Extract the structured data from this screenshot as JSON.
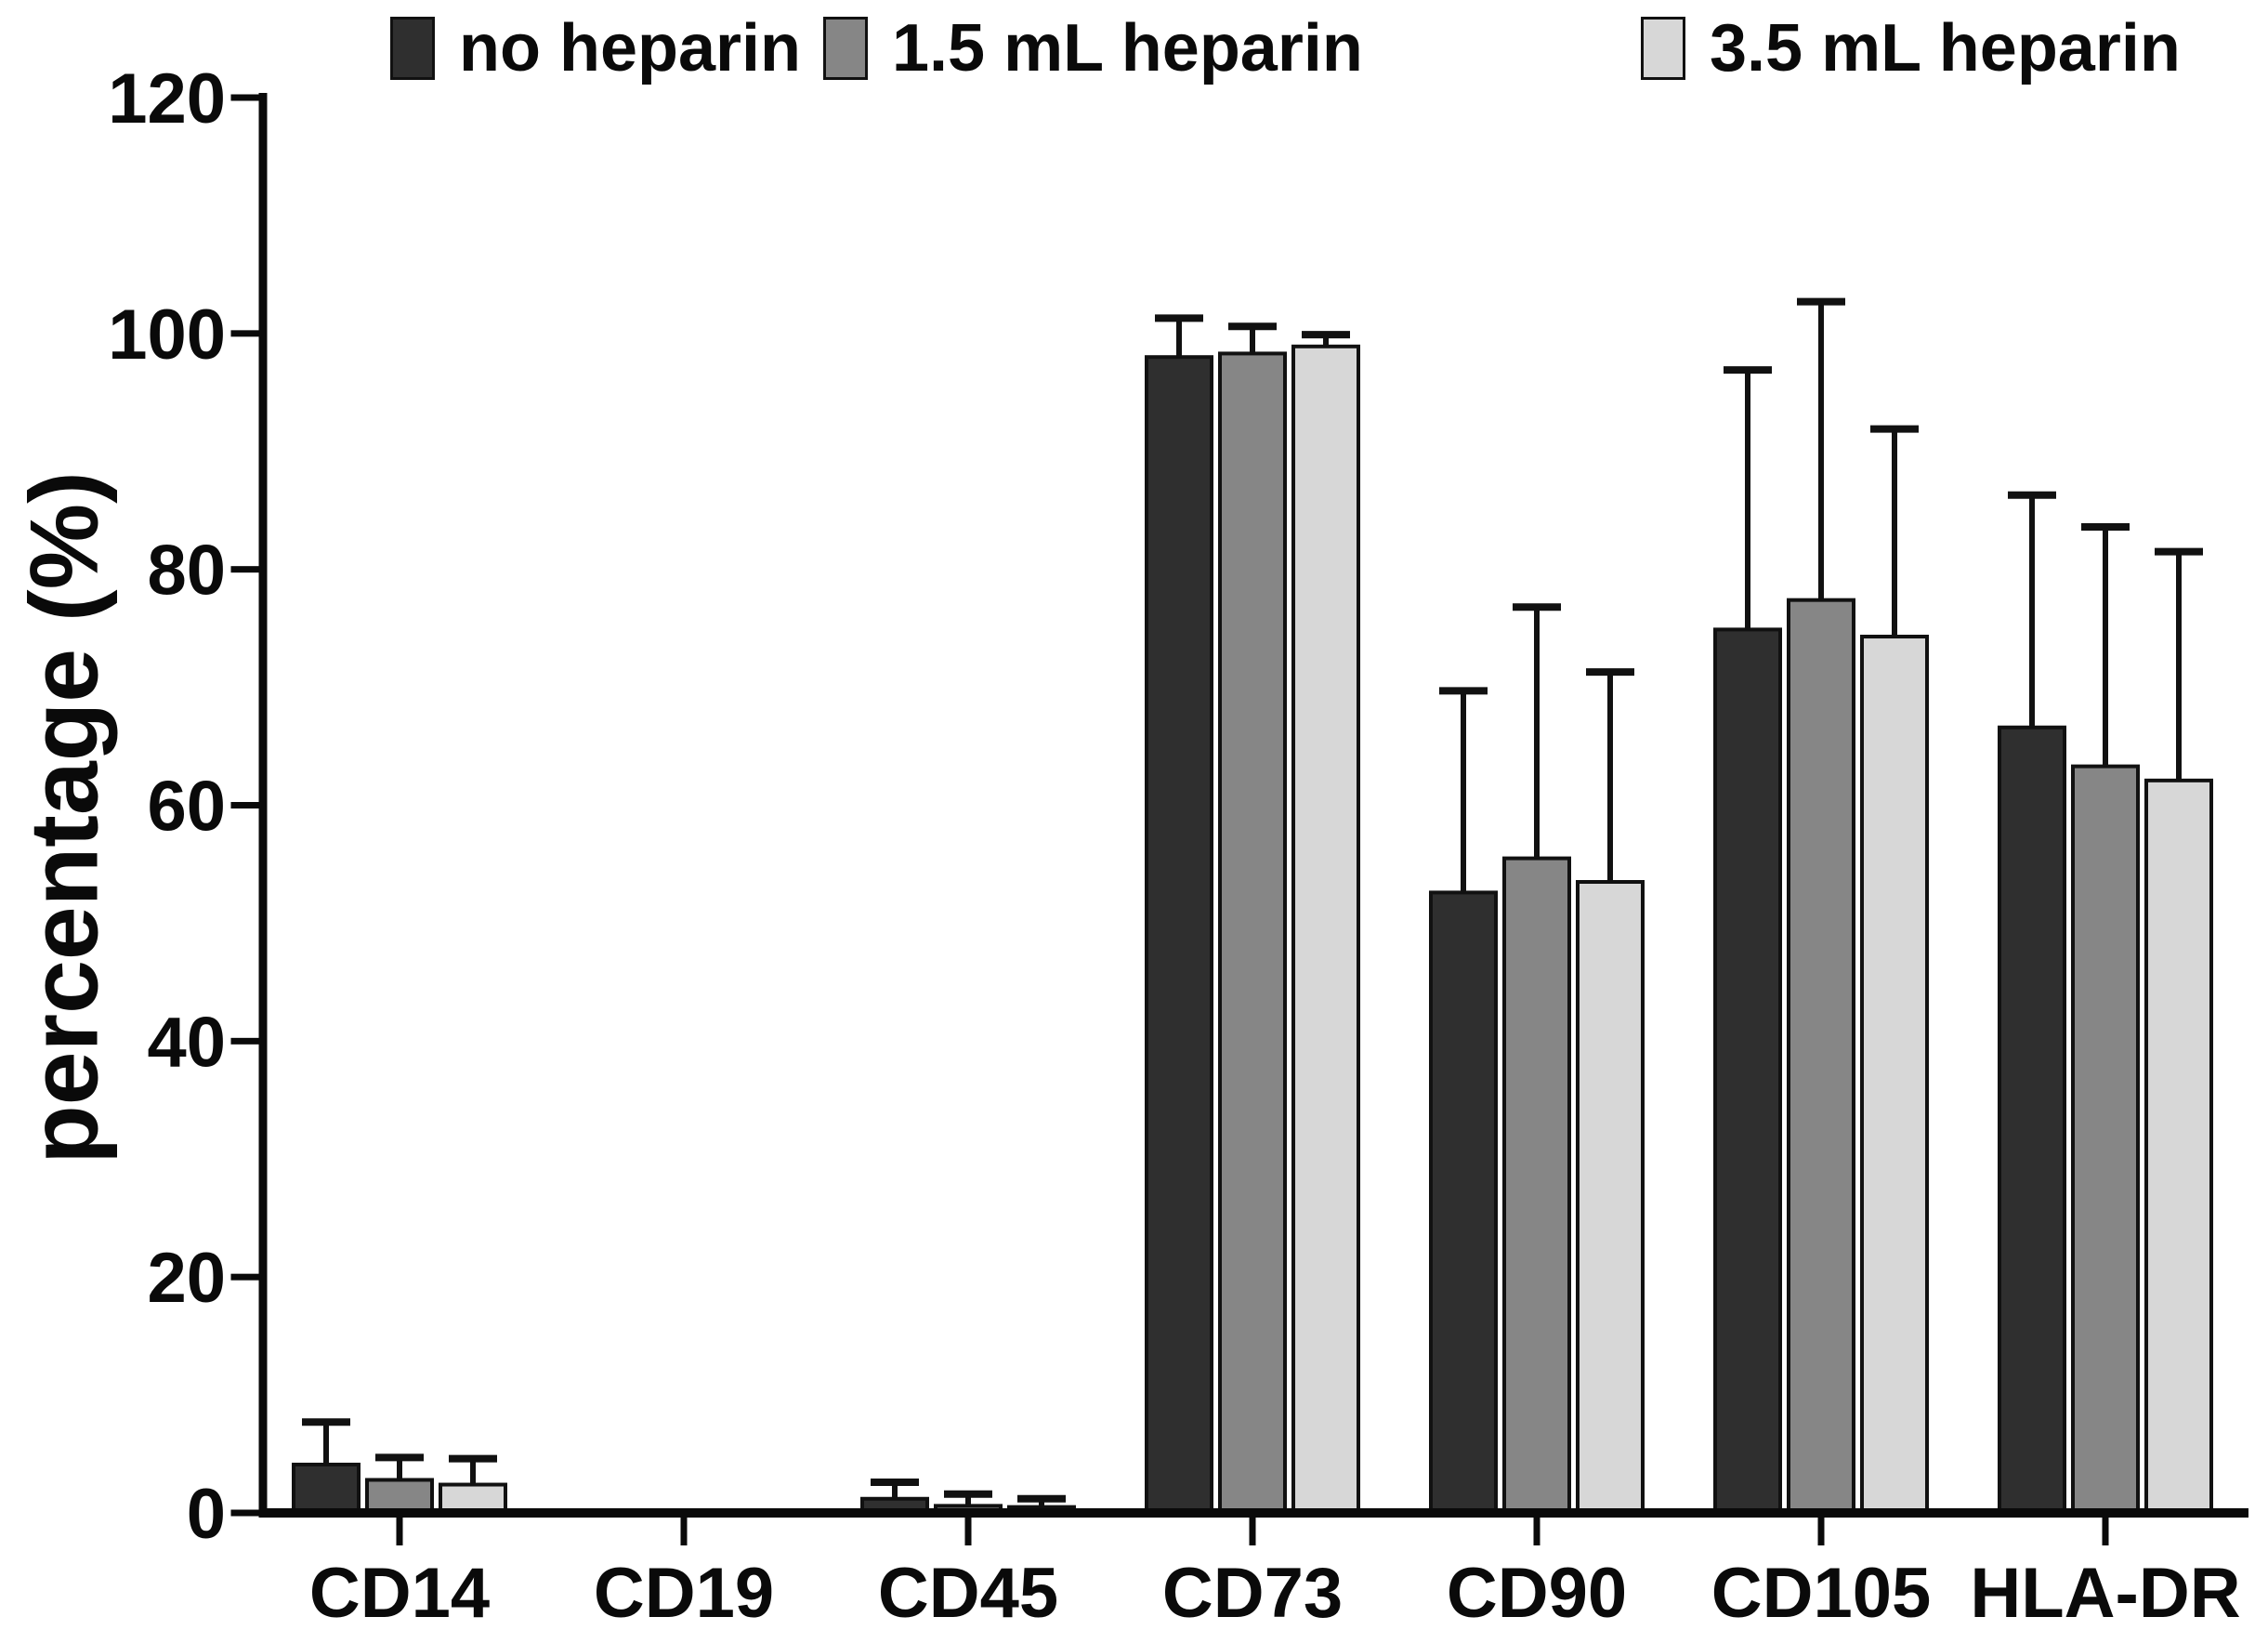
{
  "chart_data": {
    "type": "bar",
    "title": "",
    "xlabel": "",
    "ylabel": "percentage (%)",
    "ylim": [
      0,
      120
    ],
    "yticks": [
      0,
      20,
      40,
      60,
      80,
      100,
      120
    ],
    "grid": false,
    "legend_position": "top",
    "error_bars": "upper standard deviation only, T-caps",
    "background_color": "#ffffff",
    "axis_color": "#0a0a0a",
    "categories": [
      "CD14",
      "CD19",
      "CD45",
      "CD73",
      "CD90",
      "CD105",
      "HLA-DR"
    ],
    "series": [
      {
        "name": "no heparin",
        "color": "#2f2f2f",
        "values": [
          4.1,
          0,
          1.2,
          98.0,
          52.6,
          74.9,
          66.6
        ],
        "errors": [
          3.6,
          0,
          1.4,
          3.3,
          17.1,
          22.0,
          19.7
        ]
      },
      {
        "name": "1.5 mL heparin",
        "color": "#868686",
        "values": [
          2.8,
          0,
          0.6,
          98.3,
          55.5,
          77.4,
          63.3
        ],
        "errors": [
          1.9,
          0,
          1.0,
          2.3,
          21.3,
          25.3,
          20.3
        ]
      },
      {
        "name": "3.5 mL heparin",
        "color": "#d7d7d7",
        "values": [
          2.4,
          0,
          0.5,
          98.9,
          53.5,
          74.3,
          62.1
        ],
        "errors": [
          2.2,
          0,
          0.7,
          1.0,
          17.8,
          17.6,
          19.4
        ]
      }
    ]
  }
}
